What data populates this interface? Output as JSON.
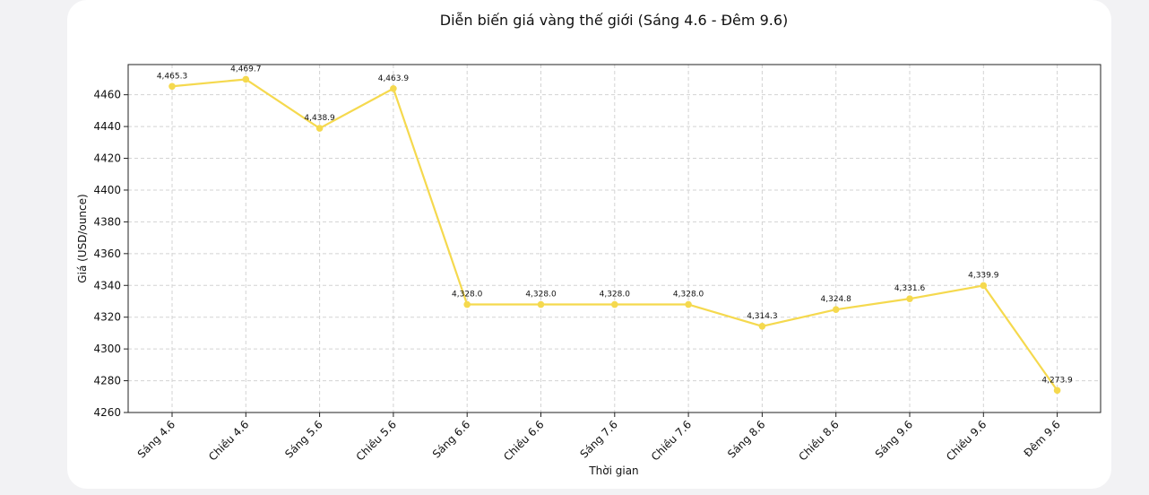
{
  "chart_data": {
    "type": "line",
    "title": "Diễn biến giá vàng thế giới (Sáng 4.6 - Đêm 9.6)",
    "xlabel": "Thời gian",
    "ylabel": "Giá (USD/ounce)",
    "categories": [
      "Sáng 4.6",
      "Chiều 4.6",
      "Sáng 5.6",
      "Chiều 5.6",
      "Sáng 6.6",
      "Chiều 6.6",
      "Sáng 7.6",
      "Chiều 7.6",
      "Sáng 8.6",
      "Chiều 8.6",
      "Sáng 9.6",
      "Chiều 9.6",
      "Đêm 9.6"
    ],
    "values": [
      4465.3,
      4469.7,
      4438.9,
      4463.9,
      4328.0,
      4328.0,
      4328.0,
      4328.0,
      4314.3,
      4324.8,
      4331.6,
      4339.9,
      4273.9
    ],
    "data_labels": [
      "4,465.3",
      "4,469.7",
      "4,438.9",
      "4,463.9",
      "4,328.0",
      "4,328.0",
      "4,328.0",
      "4,328.0",
      "4,314.3",
      "4,324.8",
      "4,331.6",
      "4,339.9",
      "4,273.9"
    ],
    "yticks": [
      4260,
      4280,
      4300,
      4320,
      4340,
      4360,
      4380,
      4400,
      4420,
      4440,
      4460
    ],
    "ylim": [
      4260,
      4479
    ],
    "grid": true,
    "line_color": "#f5d94e"
  }
}
